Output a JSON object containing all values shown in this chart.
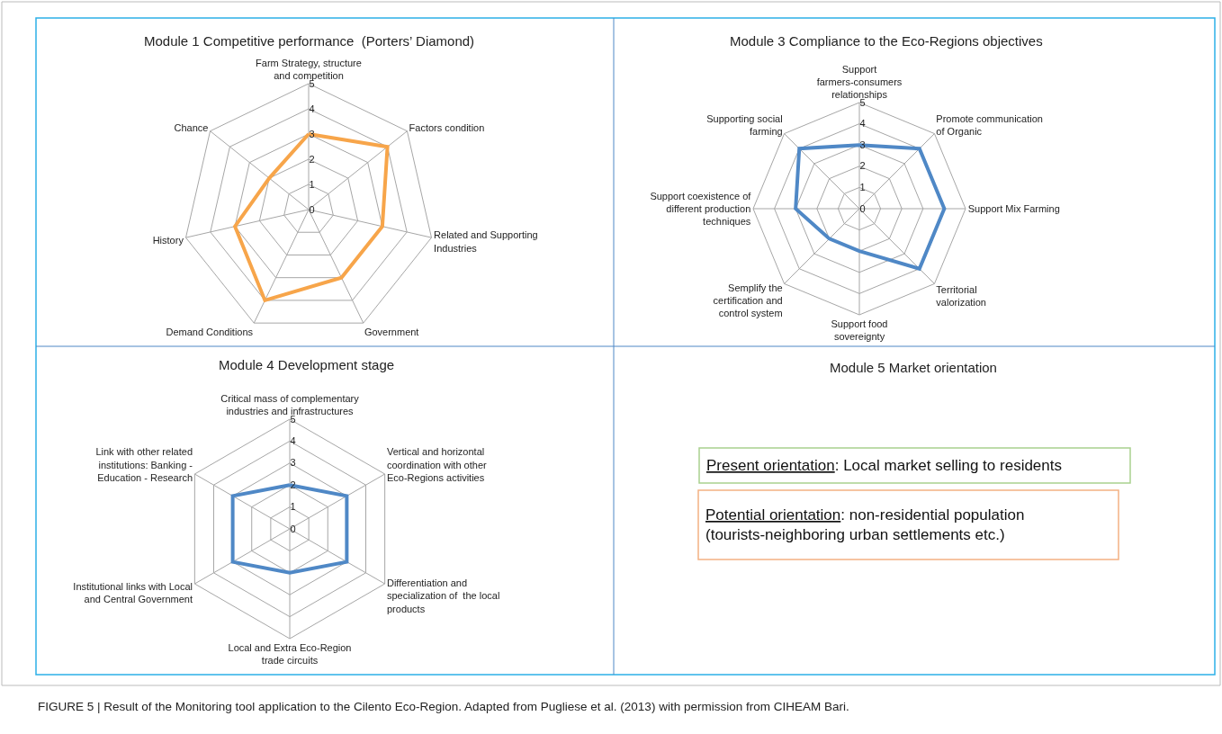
{
  "chart_data": [
    {
      "type": "radar",
      "title": "Module 1 Competitive performance  (Porters’ Diamond)",
      "categories": [
        "Farm Strategy, structure and competition",
        "Factors condition",
        "Related and Supporting Industries",
        "Government",
        "Demand Conditions",
        "History",
        "Chance"
      ],
      "series": [
        {
          "color": "#f7a54a",
          "values": [
            3,
            4,
            3,
            3,
            4,
            3,
            2
          ]
        }
      ],
      "ylim": [
        0,
        5
      ],
      "yticks": [
        0,
        1,
        2,
        3,
        4,
        5
      ],
      "grid": true
    },
    {
      "type": "radar",
      "title": "Module 3 Compliance to the Eco-Regions objectives",
      "categories": [
        "Support farmers-consumers relationships",
        "Promote communication of Organic",
        "Support Mix Farming",
        "Territorial valorization",
        "Support food sovereignty",
        "Semplify the certification and control system",
        "Support coexistence of different production techniques",
        "Supporting social farming"
      ],
      "series": [
        {
          "color": "#4f88c6",
          "values": [
            3,
            4,
            4,
            4,
            2,
            2,
            3,
            4
          ]
        }
      ],
      "ylim": [
        0,
        5
      ],
      "yticks": [
        0,
        1,
        2,
        3,
        4,
        5
      ],
      "grid": true
    },
    {
      "type": "radar",
      "title": "Module 4 Development stage",
      "categories": [
        "Critical mass of complementary  industries and infrastructures",
        "Vertical and horizontal coordination with other Eco-Regions activities",
        "Differentiation and specialization of  the local products",
        "Local and Extra Eco-Region trade circuits",
        "Institutional links with Local and Central Government",
        "Link with other related institutions: Banking - Education - Research"
      ],
      "series": [
        {
          "color": "#4f88c6",
          "values": [
            2,
            3,
            3,
            2,
            3,
            3
          ]
        }
      ],
      "ylim": [
        0,
        5
      ],
      "yticks": [
        0,
        1,
        2,
        3,
        4,
        5
      ],
      "grid": true
    },
    {
      "type": "other",
      "title": "Module 5 Market orientation",
      "annotations": [
        "Present orientation: Local market selling to residents",
        "Potential orientation: non-residential population (tourists-neighboring urban settlements etc.)",
        "FIGURE 5 | Result of the Monitoring tool application to the Cilento Eco-Region. Adapted from Pugliese et al. (2013) with permission from CIHEAM Bari."
      ]
    }
  ]
}
